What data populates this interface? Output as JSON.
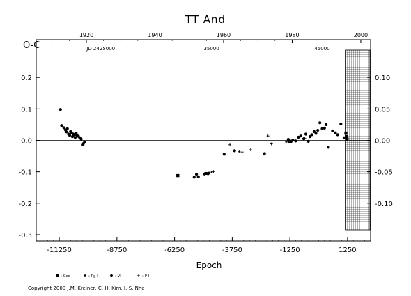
{
  "chart_data": {
    "type": "scatter",
    "title": "TT And",
    "xlabel": "Epoch",
    "ylabel": "O-C",
    "xlim": [
      -12250,
      2250
    ],
    "ylim": [
      -0.32,
      0.32
    ],
    "grid": false,
    "x_ticks": [
      "-11250",
      "-8750",
      "-6250",
      "-3750",
      "-1250",
      "1250"
    ],
    "x_tick_values": [
      -11250,
      -8750,
      -6250,
      -3750,
      -1250,
      1250
    ],
    "y_ticks_left": [
      "0.2",
      "0.1",
      "0.0",
      "-0.1",
      "-0.2",
      "-0.3"
    ],
    "y_tick_values_left": [
      0.2,
      0.1,
      0.0,
      -0.1,
      -0.2,
      -0.3
    ],
    "y_ticks_right": [
      "0.10",
      "0.05",
      "0.00",
      "-0.05",
      "-0.10"
    ],
    "y_tick_values_right": [
      0.1,
      0.05,
      0.0,
      -0.05,
      -0.1
    ],
    "top_year_ticks": [
      "1920",
      "1940",
      "1960",
      "1980",
      "2000"
    ],
    "top_year_epochs": [
      -10075,
      -7100,
      -4125,
      -1150,
      1825
    ],
    "jd_labels": [
      "JD 2425000",
      "35000",
      "45000"
    ],
    "jd_label_epochs": [
      -9450,
      -4650,
      150
    ],
    "future_band_start": 1150,
    "series": [
      {
        "name": "Ccd I",
        "marker": "square",
        "x": [
          -6110,
          -1250,
          1180,
          1200,
          1230
        ],
        "y": [
          -0.112,
          -0.003,
          0.023,
          0.012,
          0.004
        ]
      },
      {
        "name": "Pg I",
        "marker": "square-small",
        "x": [
          -4900,
          -4820,
          -4760
        ],
        "y": [
          -0.105,
          -0.105,
          -0.104
        ]
      },
      {
        "name": "Vi I",
        "marker": "circle",
        "x": [
          -11200,
          -11150,
          -11050,
          -10980,
          -10940,
          -10900,
          -10850,
          -10800,
          -10760,
          -10720,
          -10680,
          -10640,
          -10600,
          -10560,
          -10520,
          -10480,
          -10420,
          -10360,
          -10300,
          -10250,
          -10200,
          -10150,
          -5400,
          -5300,
          -5220,
          -4950,
          -4880,
          -4800,
          -4100,
          -3650,
          -2350,
          -1320,
          -1200,
          -1120,
          -1000,
          -880,
          -780,
          -650,
          -560,
          -450,
          -380,
          -300,
          -200,
          -120,
          -40,
          50,
          150,
          250,
          320,
          420,
          600,
          720,
          820,
          960,
          1100
        ],
        "y": [
          0.098,
          0.047,
          0.04,
          0.033,
          0.027,
          0.037,
          0.02,
          0.016,
          0.028,
          0.024,
          0.012,
          0.02,
          0.017,
          0.009,
          0.023,
          0.016,
          0.013,
          0.008,
          0.004,
          -0.014,
          -0.01,
          -0.005,
          -0.117,
          -0.108,
          -0.116,
          -0.107,
          -0.105,
          -0.106,
          -0.044,
          -0.033,
          -0.042,
          0.003,
          -0.004,
          0.001,
          -0.002,
          0.01,
          0.014,
          0.005,
          0.02,
          -0.003,
          0.012,
          0.018,
          0.028,
          0.022,
          0.032,
          0.056,
          0.037,
          0.039,
          0.05,
          -0.022,
          0.03,
          0.024,
          0.018,
          0.052,
          0.008
        ]
      },
      {
        "name": "P I",
        "marker": "plus",
        "x": [
          -4650,
          -4560,
          -3850,
          -3450,
          -3320,
          -2950,
          -2200,
          -2050,
          -1400,
          -600
        ],
        "y": [
          -0.101,
          -0.099,
          -0.014,
          -0.036,
          -0.037,
          -0.03,
          0.014,
          -0.011,
          -0.005,
          0.006
        ]
      }
    ]
  },
  "legend": [
    "Ccd I",
    "Pg I",
    "Vi I",
    "P I"
  ],
  "copyright": "Copyright 2000 J.M. Kreiner, C.-H. Kim, I.-S. Nha"
}
